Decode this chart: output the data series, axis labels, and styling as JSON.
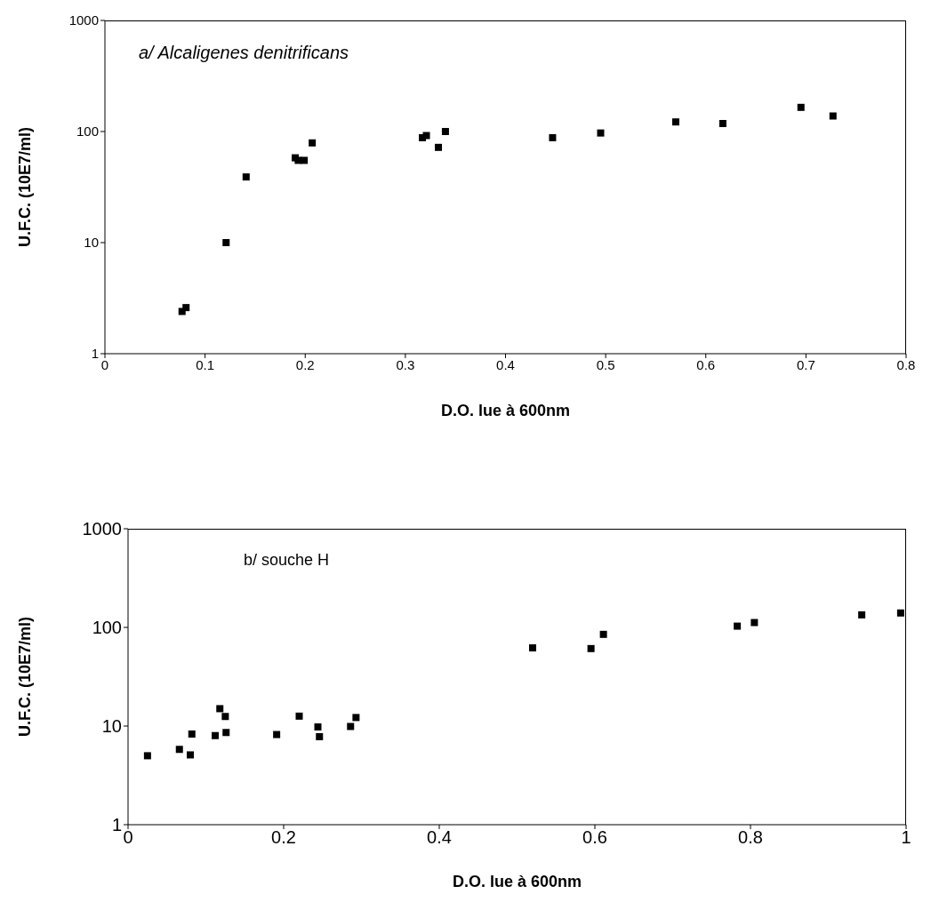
{
  "chart_data": [
    {
      "type": "scatter",
      "xlabel": "D.O. lue à 600nm",
      "ylabel": "U.F.C. (10E7/ml)",
      "annotations": [
        "a/ Alcaligenes denitrificans"
      ],
      "log": "y",
      "marker": "square",
      "xlim": [
        0,
        0.8
      ],
      "xticks": [
        0,
        0.1,
        0.2,
        0.3,
        0.4,
        0.5,
        0.6,
        0.7,
        0.8
      ],
      "ylim": [
        1,
        1000
      ],
      "yticks": [
        1,
        10,
        100,
        1000
      ],
      "series": [
        {
          "color": "#000000",
          "x": [
            0.077,
            0.081,
            0.121,
            0.141,
            0.19,
            0.193,
            0.199,
            0.207,
            0.317,
            0.321,
            0.333,
            0.34,
            0.447,
            0.495,
            0.57,
            0.617,
            0.695,
            0.727
          ],
          "values": [
            2.4,
            2.6,
            10,
            39,
            58,
            55,
            55,
            79,
            88,
            92,
            72,
            100,
            88,
            97,
            122,
            118,
            165,
            138
          ]
        }
      ]
    },
    {
      "type": "scatter",
      "xlabel": "D.O. lue à 600nm",
      "ylabel": "U.F.C. (10E7/ml)",
      "annotations": [
        "b/ souche H"
      ],
      "log": "y",
      "marker": "square",
      "xlim": [
        0,
        1
      ],
      "xticks": [
        0,
        0.2,
        0.4,
        0.6,
        0.8,
        1
      ],
      "ylim": [
        1,
        1000
      ],
      "yticks": [
        1,
        10,
        100,
        1000
      ],
      "series": [
        {
          "color": "#000000",
          "x": [
            0.025,
            0.066,
            0.08,
            0.082,
            0.112,
            0.118,
            0.125,
            0.126,
            0.191,
            0.22,
            0.244,
            0.246,
            0.286,
            0.293,
            0.52,
            0.595,
            0.611,
            0.783,
            0.805,
            0.943,
            0.993
          ],
          "values": [
            5.0,
            5.8,
            5.1,
            8.3,
            8.0,
            15,
            12.5,
            8.6,
            8.2,
            12.6,
            9.8,
            7.8,
            9.9,
            12.2,
            62,
            61,
            85,
            103,
            112,
            134,
            140
          ]
        }
      ]
    }
  ]
}
